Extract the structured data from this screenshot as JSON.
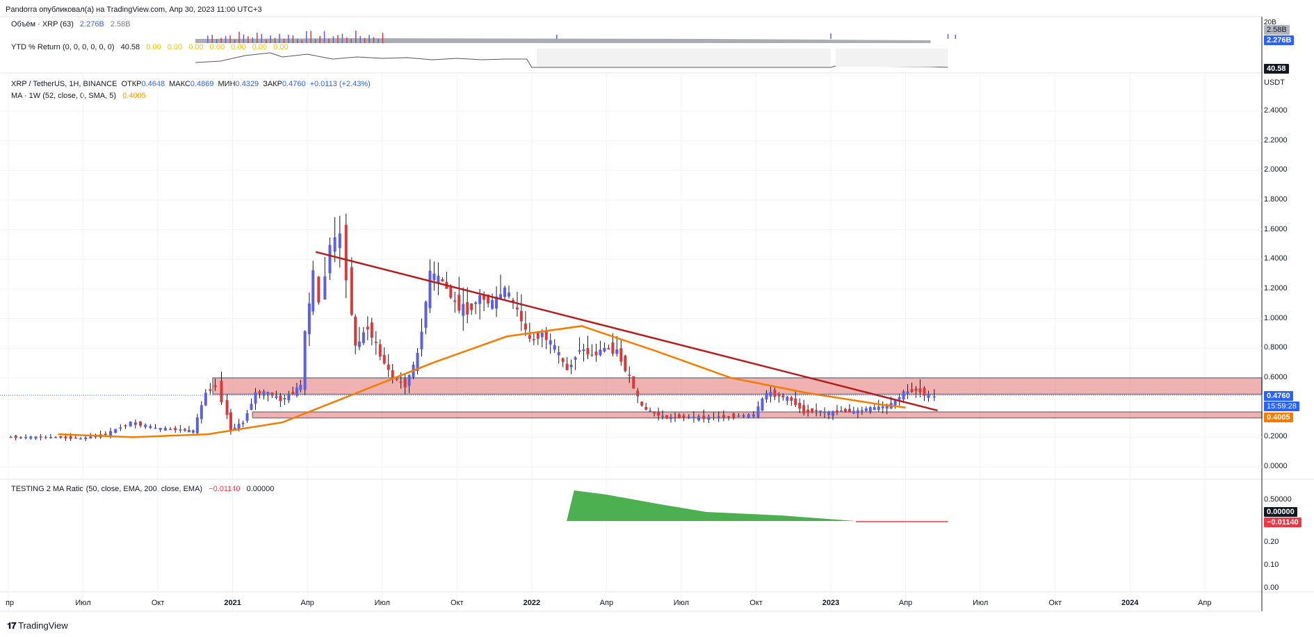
{
  "header": "Pandorra опубликовал(а) на TradingView.com, Апр 30, 2023 11:00 UTC+3",
  "volume_legend": {
    "name": "Объём · XRP (63)",
    "v1": "2.276B",
    "v2": "2.58B"
  },
  "ytd_legend": {
    "name": "YTD % Return (0, 0, 0, 0, 0, 0)",
    "v1": "40.58",
    "vals": [
      "0.00",
      "0.00",
      "0.00",
      "0.00",
      "0.00",
      "0.00",
      "0.00"
    ]
  },
  "main_legend": {
    "symbol": "XRP / TetherUS, 1H, BINANCE",
    "open_label": "ОТКР",
    "open": "0.4648",
    "high_label": "МАКС",
    "high": "0.4869",
    "low_label": "МИН",
    "low": "0.4329",
    "close_label": "ЗАКР",
    "close": "0.4760",
    "change": "+0.0113 (+2.43%)",
    "ma_name": "MA · 1W (52, close, 0, SMA, 5)",
    "ma_value": "0.4005"
  },
  "ratio_legend": {
    "name": "TESTING 2 MA Ratio (50, close, EMA, 200, close, EMA)",
    "v1": "−0.01140",
    "v2": "0.00000"
  },
  "price_axis": {
    "unit": "USDT",
    "ticks": [
      "2.4000",
      "2.2000",
      "2.0000",
      "1.8000",
      "1.6000",
      "1.4000",
      "1.2000",
      "1.0000",
      "0.8000",
      "0.6000",
      "0.2000",
      "0.0000"
    ],
    "last_price": "0.4760",
    "countdown": "15:59:28",
    "ma_tag": "0.4005",
    "vol_tag1": "2.58B",
    "vol_tag2": "2.276B",
    "vol_top": "20B",
    "ytd_tag": "40.58"
  },
  "ratio_axis": {
    "ticks": [
      "0.50000",
      "0.20",
      "0.10",
      "0.00"
    ],
    "tag_zero": "0.00000",
    "tag_neg": "−0.01140"
  },
  "time_axis": [
    "пр",
    "Июл",
    "Окт",
    "2021",
    "Апр",
    "Июл",
    "Окт",
    "2022",
    "Апр",
    "Июл",
    "Окт",
    "2023",
    "Апр",
    "Июл",
    "Окт",
    "2024",
    "Апр"
  ],
  "brand": "TradingView",
  "colors": {
    "up": "#5b5fe0",
    "down": "#d63a3a",
    "ma": "#f57c00",
    "trend": "#b71c1c",
    "zone": "#e57373",
    "ratio": "#4caf50"
  },
  "chart_data": {
    "type": "line",
    "title": "XRP / TetherUS, 1H, BINANCE",
    "ylabel": "USDT",
    "ylim": [
      0,
      2.5
    ],
    "series": [
      {
        "name": "MA · 1W (52, close, 0, SMA, 5)",
        "x": [
          "2020-06",
          "2020-09",
          "2020-12",
          "2021-03",
          "2021-06",
          "2021-09",
          "2021-12",
          "2022-03",
          "2022-06",
          "2022-09",
          "2022-12",
          "2023-03",
          "2023-04"
        ],
        "values": [
          0.22,
          0.2,
          0.22,
          0.3,
          0.5,
          0.7,
          0.88,
          0.95,
          0.78,
          0.6,
          0.5,
          0.42,
          0.4
        ]
      }
    ],
    "zones": [
      [
        0.49,
        0.6
      ],
      [
        0.33,
        0.37
      ]
    ],
    "trendline": [
      [
        "2021-04",
        1.45
      ],
      [
        "2023-05",
        0.38
      ]
    ]
  }
}
